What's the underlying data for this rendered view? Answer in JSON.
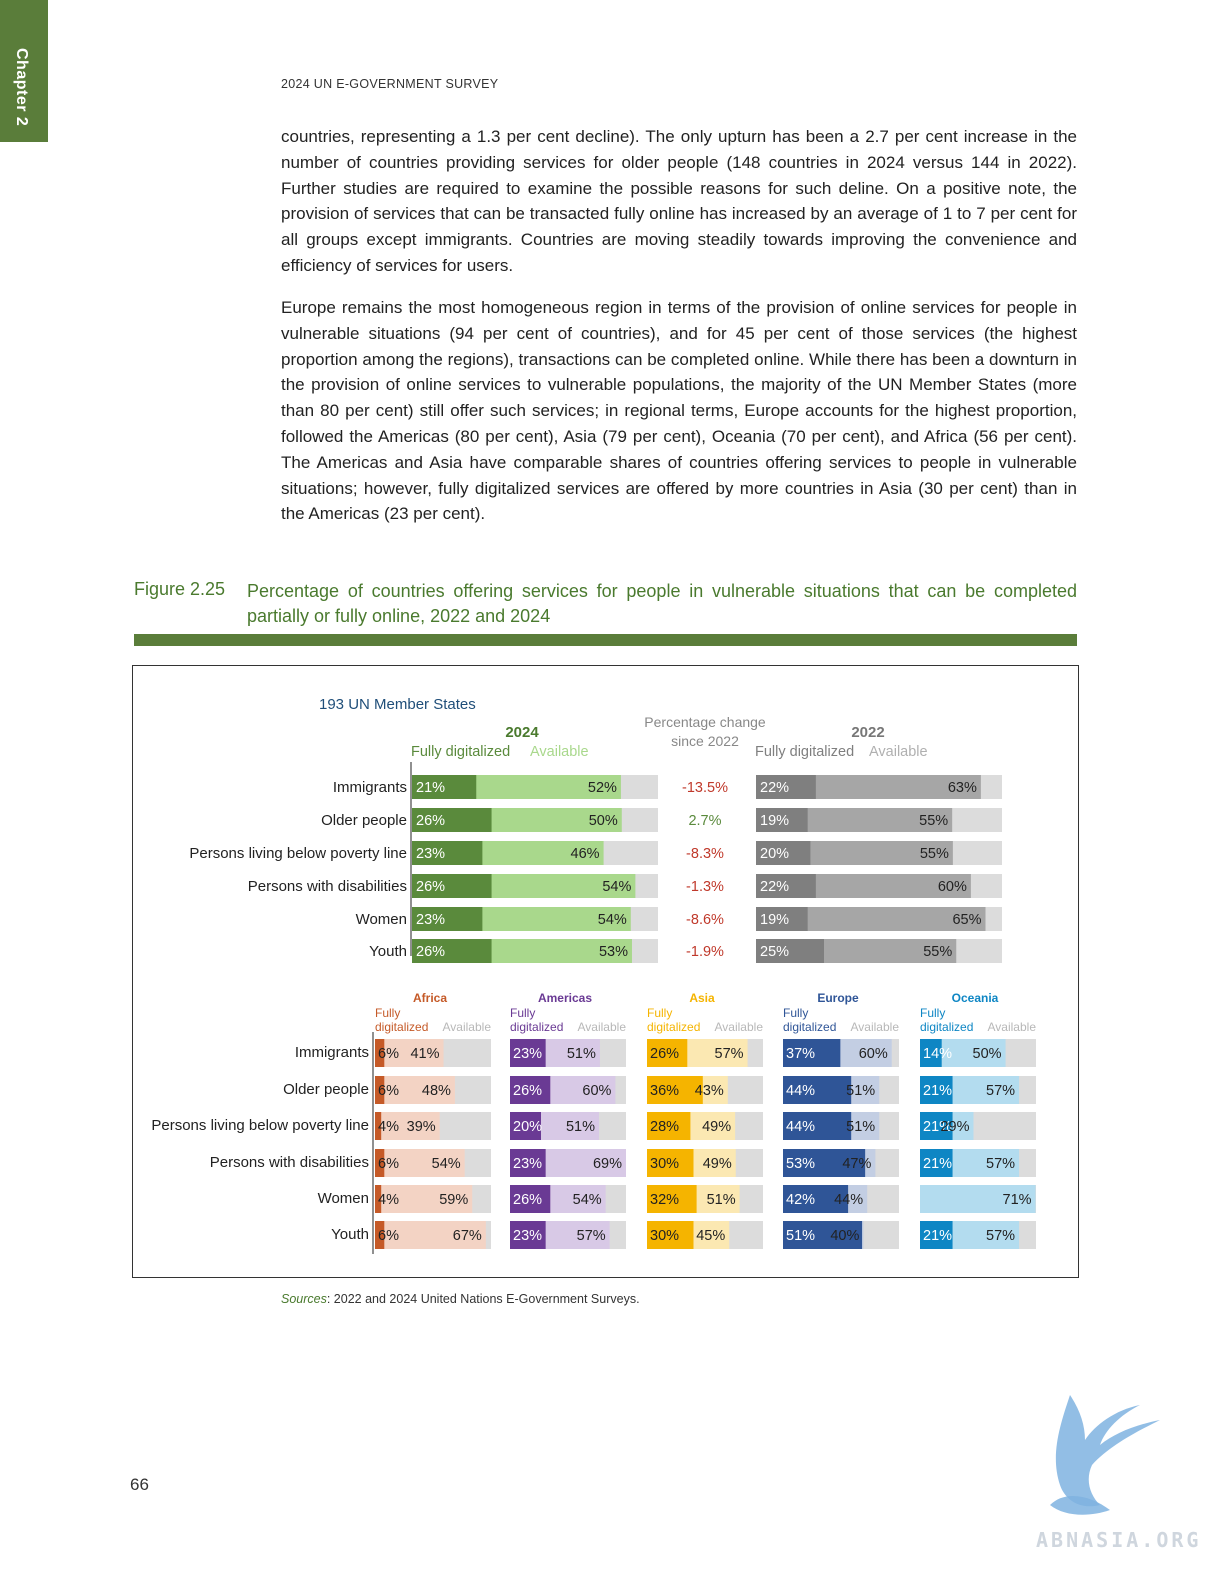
{
  "chapter_tab": "Chapter 2",
  "running_head": "2024 UN E-GOVERNMENT SURVEY",
  "paragraphs": [
    "countries, representing a 1.3 per cent decline). The only upturn has been a 2.7 per cent increase in the number of countries providing services for older people (148 countries in 2024 versus 144 in 2022). Further studies are required to examine the possible reasons for such deline. On a positive note, the provision of services that can be transacted fully online has increased by an average of 1 to 7 per cent for all groups except immigrants. Countries are moving steadily towards improving the convenience and efficiency of services for users.",
    "Europe remains the most homogeneous region in terms of the provision of online services for people in vulnerable situations (94 per cent of countries), and for 45 per cent of those services (the highest proportion among the regions), transactions can be completed online. While there has been a downturn in the provision of online services to vulnerable populations, the majority of the UN Member States (more than 80 per cent) still offer such services; in regional terms, Europe accounts for the highest proportion, followed the Americas (80 per cent), Asia (79 per cent), Oceania (70 per cent), and Africa (56 per cent). The Americas and Asia have comparable shares of countries offering services to people in vulnerable situations; however, fully digitalized services are offered by more countries in Asia (30 per cent) than in the Americas (23 per cent)."
  ],
  "figure": {
    "label": "Figure 2.25",
    "title": "Percentage of countries offering services for people in vulnerable situations that can be completed partially or fully online, 2022 and 2024"
  },
  "source": {
    "label": "Sources",
    "text": ": 2022 and 2024 United Nations E-Government Surveys."
  },
  "page_number": "66",
  "watermark": "ABNASIA.ORG",
  "chart_data": {
    "type": "bar",
    "title": "193 UN Member States",
    "categories": [
      "Immigrants",
      "Older people",
      "Persons living below poverty line",
      "Persons with disabilities",
      "Women",
      "Youth"
    ],
    "headers": {
      "y2024": "2024",
      "y2022": "2022",
      "change": [
        "Percentage change",
        "since 2022"
      ],
      "fully": "Fully digitalized",
      "fully_lines": [
        "Fully",
        "digitalized"
      ],
      "available": "Available"
    },
    "series": [
      {
        "name": "2024 Fully digitalized",
        "values": [
          21,
          26,
          23,
          26,
          23,
          26
        ]
      },
      {
        "name": "2024 Available",
        "values": [
          52,
          50,
          46,
          54,
          54,
          53
        ]
      },
      {
        "name": "2022 Fully digitalized",
        "values": [
          22,
          19,
          20,
          22,
          19,
          25
        ]
      },
      {
        "name": "2022 Available",
        "values": [
          63,
          55,
          55,
          60,
          65,
          55
        ]
      }
    ],
    "change_labels": [
      "-13.5%",
      "2.7%",
      "-8.3%",
      "-1.3%",
      "-8.6%",
      "-1.9%"
    ],
    "change_values": [
      -13.5,
      2.7,
      -8.3,
      -1.3,
      -8.6,
      -1.9
    ],
    "regions": [
      {
        "name": "Africa",
        "fully": [
          6,
          6,
          4,
          6,
          4,
          6
        ],
        "available": [
          41,
          48,
          39,
          54,
          59,
          67
        ],
        "color": "#c55a28",
        "light": "#f3d3c4",
        "label_color": "#c55a28"
      },
      {
        "name": "Americas",
        "fully": [
          23,
          26,
          20,
          23,
          26,
          23
        ],
        "available": [
          51,
          60,
          51,
          69,
          54,
          57
        ],
        "color": "#6a3a94",
        "light": "#d8c9e6",
        "label_color": "#6a3a94"
      },
      {
        "name": "Asia",
        "fully": [
          26,
          36,
          28,
          30,
          32,
          30
        ],
        "available": [
          57,
          43,
          49,
          49,
          51,
          45
        ],
        "color": "#f5b400",
        "light": "#fbe8b2",
        "label_color": "#f5b400"
      },
      {
        "name": "Europe",
        "fully": [
          37,
          44,
          44,
          53,
          42,
          51
        ],
        "available": [
          60,
          51,
          51,
          47,
          44,
          40
        ],
        "color": "#2f5597",
        "light": "#c3cee3",
        "label_color": "#2f5597"
      },
      {
        "name": "Oceania",
        "fully": [
          14,
          21,
          21,
          21,
          null,
          21
        ],
        "available": [
          50,
          57,
          29,
          57,
          71,
          57
        ],
        "color": "#0e86c4",
        "light": "#b3dcef",
        "label_color": "#0e86c4"
      }
    ],
    "colors": {
      "green_dark": "#5a8a3c",
      "green_light": "#a9d88c",
      "grey_dark": "#7f7f7f",
      "grey_mid": "#a6a6a6",
      "track": "#dcdcdc",
      "change_negative": "#c0392b",
      "change_positive": "#5a8a3c"
    }
  }
}
